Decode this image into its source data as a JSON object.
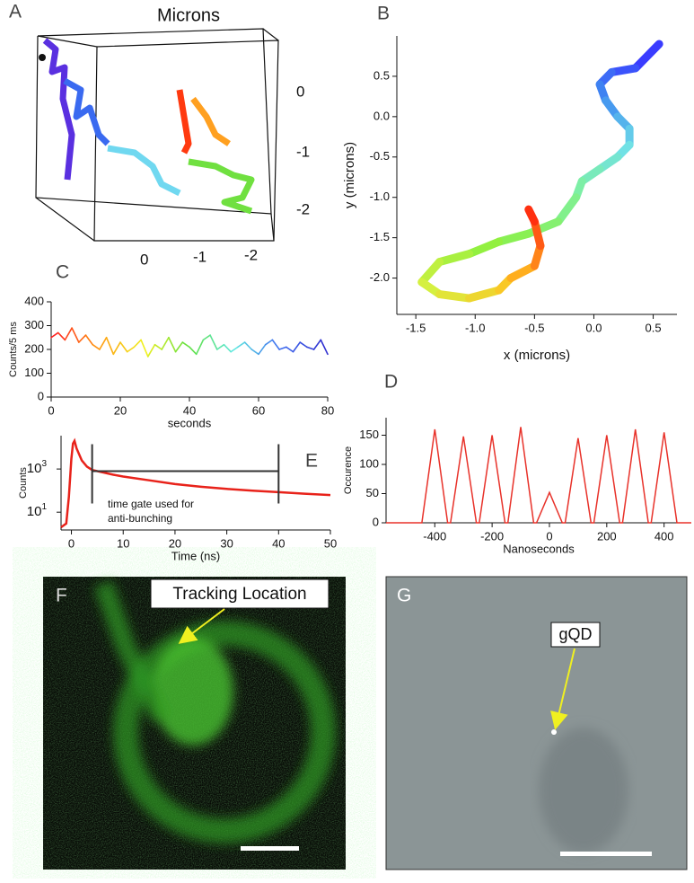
{
  "figure": {
    "panel_letters": [
      "A",
      "B",
      "C",
      "D",
      "E",
      "F",
      "G"
    ],
    "panel_a": {
      "title": "Microns",
      "right_axis_labels": [
        "0",
        "-1",
        "-2"
      ],
      "bottom_axis_labels": [
        "0",
        "-1",
        "-2"
      ]
    },
    "panel_f": {
      "label": "Tracking Location"
    },
    "panel_g": {
      "label": "gQD"
    }
  },
  "chart_data": [
    {
      "type": "line",
      "xlabel": "x (microns)",
      "ylabel": "y (microns)",
      "x": [
        0.55,
        0.35,
        0.15,
        0.05,
        0.1,
        0.2,
        0.3,
        0.3,
        0.2,
        0.05,
        -0.1,
        -0.15,
        -0.3,
        -0.55,
        -0.8,
        -1.05,
        -1.3,
        -1.45,
        -1.3,
        -1.05,
        -0.8,
        -0.7,
        -0.5,
        -0.45,
        -0.5,
        -0.55
      ],
      "values": [
        0.9,
        0.6,
        0.55,
        0.4,
        0.2,
        0.0,
        -0.15,
        -0.35,
        -0.5,
        -0.65,
        -0.8,
        -1.0,
        -1.3,
        -1.45,
        -1.55,
        -1.7,
        -1.8,
        -2.05,
        -2.2,
        -2.25,
        -2.15,
        -2.0,
        -1.85,
        -1.6,
        -1.3,
        -1.15
      ],
      "gradient": [
        "#3a3cff",
        "#3f8cf0",
        "#70e0e8",
        "#7ef0a0",
        "#8cf040",
        "#d8f040",
        "#ffc020",
        "#ff3010"
      ],
      "xlim": [
        -1.66,
        0.7
      ],
      "ylim": [
        -2.45,
        1.0
      ],
      "xticks": [
        -1.5,
        {
          "value": -1,
          "label": "-1.0"
        },
        -0.5,
        {
          "value": 0,
          "label": "0.0"
        },
        0.5
      ],
      "yticks": [
        0.5,
        {
          "value": 0,
          "label": "0.0"
        },
        -0.5,
        {
          "value": -1,
          "label": "-1.0"
        },
        -1.5,
        {
          "value": -2,
          "label": "-2.0"
        }
      ]
    },
    {
      "type": "line",
      "xlabel": "seconds",
      "ylabel": "Counts/5 ms",
      "x": [
        0,
        2,
        4,
        6,
        8,
        10,
        12,
        14,
        16,
        18,
        20,
        22,
        24,
        26,
        28,
        30,
        32,
        34,
        36,
        38,
        40,
        42,
        44,
        46,
        48,
        50,
        52,
        54,
        56,
        58,
        60,
        62,
        64,
        66,
        68,
        70,
        72,
        74,
        76,
        78,
        80
      ],
      "values": [
        250,
        270,
        240,
        290,
        230,
        260,
        220,
        200,
        250,
        180,
        230,
        190,
        210,
        240,
        170,
        220,
        200,
        250,
        190,
        230,
        210,
        180,
        240,
        260,
        200,
        220,
        190,
        210,
        230,
        200,
        180,
        220,
        240,
        200,
        210,
        190,
        230,
        210,
        200,
        240,
        180
      ],
      "gradient": [
        "#ff2020",
        "#ff9a10",
        "#f0f020",
        "#60e040",
        "#60e8e0",
        "#4070f0",
        "#3030d0"
      ],
      "xlim": [
        0,
        80
      ],
      "ylim": [
        0,
        400
      ],
      "xticks": [
        0,
        20,
        40,
        60,
        80
      ],
      "yticks": [
        0,
        100,
        200,
        300,
        400
      ]
    },
    {
      "type": "line",
      "xlabel": "Time (ns)",
      "ylabel": "Counts",
      "color": "#e8221a",
      "ylog": true,
      "x": [
        -2,
        -1,
        -0.5,
        0,
        0.3,
        0.6,
        1,
        2,
        3,
        4,
        6,
        8,
        10,
        15,
        20,
        25,
        30,
        35,
        40,
        45,
        50
      ],
      "values": [
        2,
        3,
        50,
        3000,
        15000,
        20000,
        9000,
        2500,
        1300,
        900,
        700,
        550,
        450,
        300,
        200,
        150,
        120,
        100,
        85,
        72,
        62
      ],
      "xlim": [
        -2,
        50
      ],
      "ylim": [
        1.5,
        35000
      ],
      "xticks": [
        0,
        10,
        20,
        30,
        40,
        50
      ],
      "yticks": [
        {
          "value": 10,
          "label": "10",
          "exponent": "1"
        },
        {
          "value": 1000,
          "label": "10",
          "exponent": "3"
        }
      ],
      "gate_x": [
        4,
        40
      ],
      "gate_y": 800,
      "annotations": [
        "time gate used for",
        "anti-bunching"
      ]
    },
    {
      "type": "line",
      "xlabel": "Nanoseconds",
      "ylabel": "Occurence",
      "color": "#e8322a",
      "x": [
        -570,
        -445,
        -400,
        -355,
        -345,
        -300,
        -255,
        -245,
        -200,
        -155,
        -145,
        -100,
        -55,
        -45,
        0,
        45,
        55,
        100,
        145,
        155,
        200,
        245,
        255,
        300,
        345,
        355,
        400,
        445,
        495
      ],
      "values": [
        0,
        0,
        160,
        0,
        0,
        148,
        0,
        0,
        150,
        0,
        0,
        164,
        0,
        0,
        52,
        0,
        0,
        145,
        0,
        0,
        150,
        0,
        0,
        160,
        0,
        0,
        155,
        0,
        0
      ],
      "xlim": [
        -570,
        495
      ],
      "ylim": [
        0,
        180
      ],
      "xticks": [
        -400,
        -200,
        0,
        200,
        400
      ],
      "yticks": [
        0,
        50,
        100,
        150
      ]
    }
  ]
}
